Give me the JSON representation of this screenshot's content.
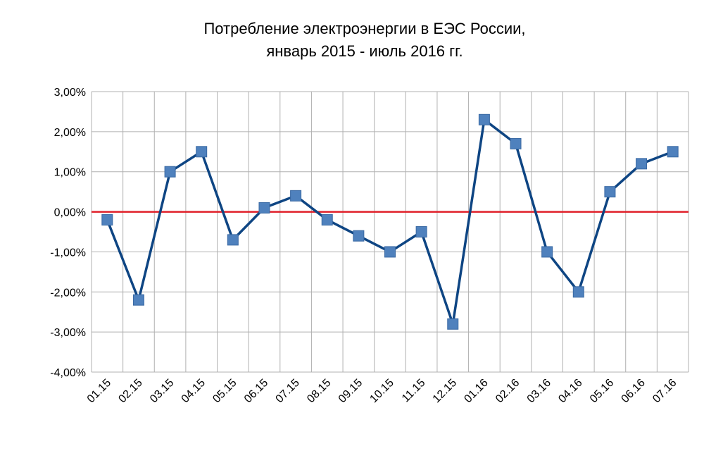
{
  "chart_data": {
    "type": "line",
    "title": [
      "Потребление электроэнергии в ЕЭС России,",
      "январь 2015 -  июль 2016 гг."
    ],
    "categories": [
      "01.15",
      "02.15",
      "03.15",
      "04.15",
      "05.15",
      "06.15",
      "07.15",
      "08.15",
      "09.15",
      "10.15",
      "11.15",
      "12.15",
      "01.16",
      "02.16",
      "03.16",
      "04.16",
      "05.16",
      "06.16",
      "07.16"
    ],
    "series": [
      {
        "color": "#0e4583",
        "marker_color": "#4f81bd",
        "values": [
          -0.2,
          -2.2,
          1.0,
          1.5,
          -0.7,
          0.1,
          0.4,
          -0.2,
          -0.6,
          -1.0,
          -0.5,
          -2.8,
          2.3,
          1.7,
          -1.0,
          -2.0,
          0.5,
          1.2,
          1.5
        ]
      }
    ],
    "ylim": [
      -4,
      3
    ],
    "yticks": [
      {
        "value": -4,
        "label": "-4,00%"
      },
      {
        "value": -3,
        "label": "-3,00%"
      },
      {
        "value": -2,
        "label": "-2,00%"
      },
      {
        "value": -1,
        "label": "-1,00%"
      },
      {
        "value": 0,
        "label": "0,00%"
      },
      {
        "value": 1,
        "label": "1,00%"
      },
      {
        "value": 2,
        "label": "2,00%"
      },
      {
        "value": 3,
        "label": "3,00%"
      }
    ],
    "grid": true,
    "reference_line": {
      "value": 0,
      "color": "#e0202a"
    }
  }
}
